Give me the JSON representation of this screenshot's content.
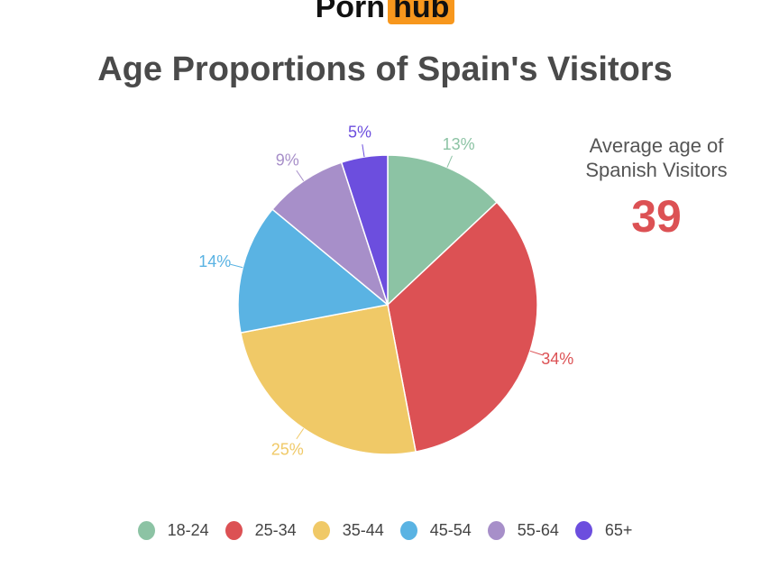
{
  "logo": {
    "part1": "Porn",
    "part2": "hub"
  },
  "title": "Age Proportions of Spain's Visitors",
  "average": {
    "label_line1": "Average age of",
    "label_line2": "Spanish Visitors",
    "value": "39"
  },
  "chart_data": {
    "type": "pie",
    "title": "Age Proportions of Spain's Visitors",
    "categories": [
      "18-24",
      "25-34",
      "35-44",
      "45-54",
      "55-64",
      "65+"
    ],
    "values": [
      13,
      34,
      25,
      14,
      9,
      5
    ],
    "colors": [
      "#8cc3a4",
      "#dc5154",
      "#f0c967",
      "#5ab3e3",
      "#a78fc9",
      "#6c4ede"
    ],
    "labels": [
      "13%",
      "34%",
      "25%",
      "14%",
      "9%",
      "5%"
    ],
    "legend_position": "bottom"
  },
  "legend": [
    {
      "label": "18-24",
      "color": "#8cc3a4"
    },
    {
      "label": "25-34",
      "color": "#dc5154"
    },
    {
      "label": "35-44",
      "color": "#f0c967"
    },
    {
      "label": "45-54",
      "color": "#5ab3e3"
    },
    {
      "label": "55-64",
      "color": "#a78fc9"
    },
    {
      "label": "65+",
      "color": "#6c4ede"
    }
  ]
}
